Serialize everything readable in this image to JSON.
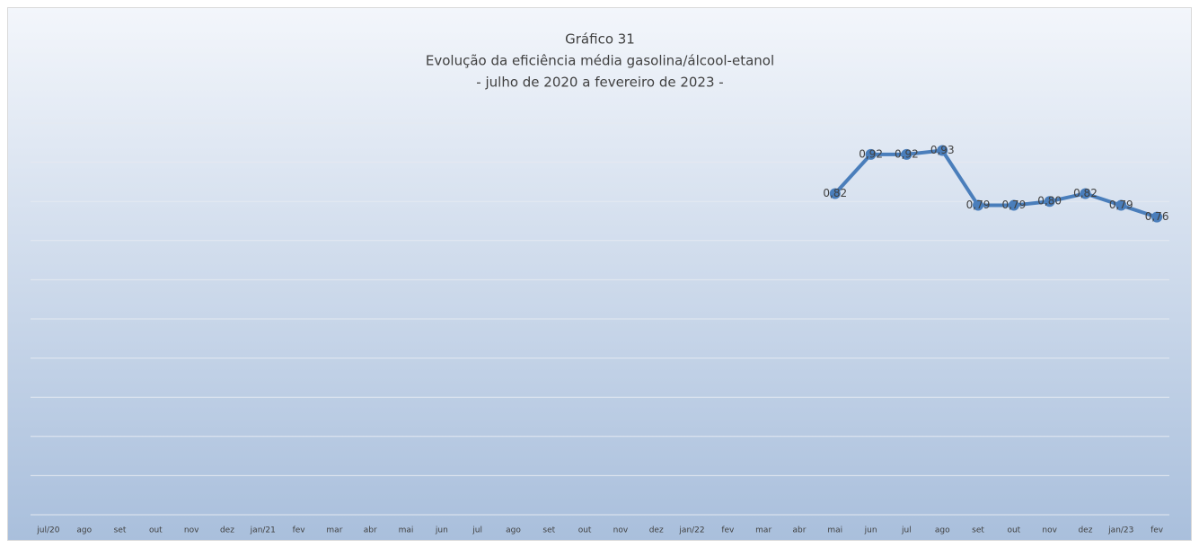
{
  "chart_data": {
    "type": "line",
    "title": [
      "Gráfico 31",
      "Evolução da eficiência média gasolina/álcool-etanol",
      "- julho de 2020 a fevereiro de 2023 -"
    ],
    "categories": [
      "jul/20",
      "ago",
      "set",
      "out",
      "nov",
      "dez",
      "jan/21",
      "fev",
      "mar",
      "abr",
      "mai",
      "jun",
      "jul",
      "ago",
      "set",
      "out",
      "nov",
      "dez",
      "jan/22",
      "fev",
      "mar",
      "abr",
      "mai",
      "jun",
      "jul",
      "ago",
      "set",
      "out",
      "nov",
      "dez",
      "jan/23",
      "fev"
    ],
    "values": [
      null,
      null,
      null,
      null,
      null,
      null,
      null,
      null,
      null,
      null,
      null,
      null,
      null,
      null,
      null,
      null,
      null,
      null,
      null,
      null,
      null,
      null,
      0.82,
      0.92,
      0.92,
      0.93,
      0.79,
      0.79,
      0.8,
      0.82,
      0.79,
      0.76
    ],
    "value_labels": [
      null,
      null,
      null,
      null,
      null,
      null,
      null,
      null,
      null,
      null,
      null,
      null,
      null,
      null,
      null,
      null,
      null,
      null,
      null,
      null,
      null,
      null,
      "0,82",
      "0,92",
      "0,92",
      "0,93",
      "0,79",
      "0,79",
      "0,80",
      "0,82",
      "0,79",
      "0,76"
    ],
    "color": "#4a7ebb",
    "ylim": [
      0,
      1
    ],
    "yticks": [
      0,
      0.1,
      0.2,
      0.3,
      0.4,
      0.5,
      0.6,
      0.7,
      0.8,
      0.9,
      1
    ],
    "grid": true
  }
}
